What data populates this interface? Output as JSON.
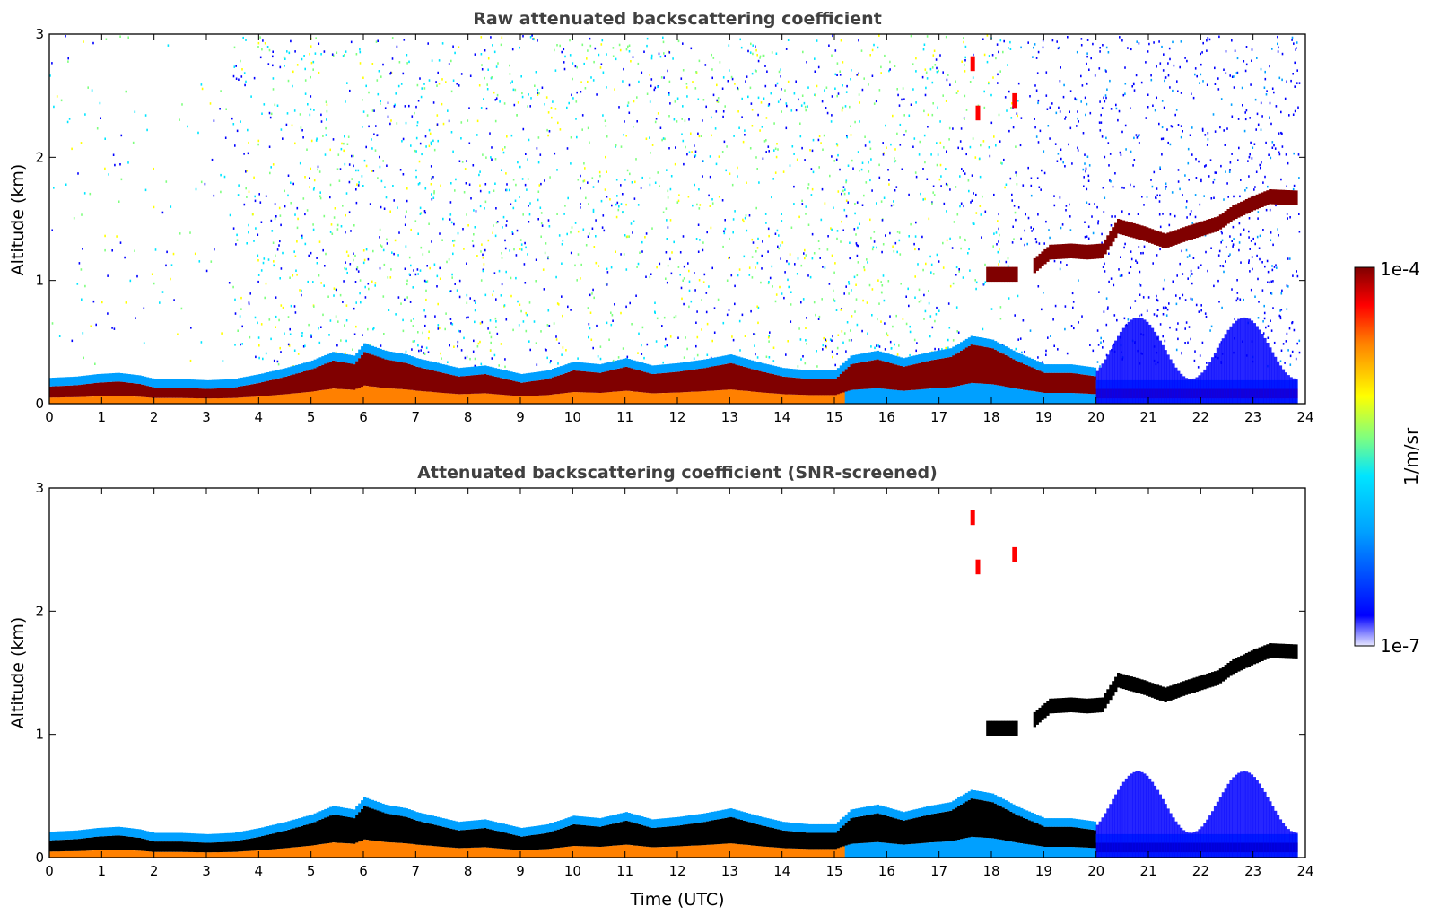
{
  "chart_data": [
    {
      "type": "heatmap",
      "title": "Raw attenuated backscattering coefficient",
      "xlabel": "",
      "ylabel": "Altitude (km)",
      "xlim": [
        0,
        24
      ],
      "ylim": [
        0,
        3
      ],
      "xticks": [
        "0",
        "1",
        "2",
        "3",
        "4",
        "5",
        "6",
        "7",
        "8",
        "9",
        "10",
        "11",
        "12",
        "13",
        "14",
        "15",
        "16",
        "17",
        "18",
        "19",
        "20",
        "21",
        "22",
        "23",
        "24"
      ],
      "yticks": [
        "0",
        "1",
        "2",
        "3"
      ],
      "layers": {
        "surface_layer_top_km": [
          [
            0,
            0.14
          ],
          [
            0.5,
            0.15
          ],
          [
            0.9,
            0.17
          ],
          [
            1.3,
            0.18
          ],
          [
            1.7,
            0.16
          ],
          [
            2,
            0.13
          ],
          [
            2.5,
            0.13
          ],
          [
            3,
            0.12
          ],
          [
            3.5,
            0.13
          ],
          [
            4,
            0.17
          ],
          [
            4.5,
            0.22
          ],
          [
            5,
            0.28
          ],
          [
            5.4,
            0.35
          ],
          [
            5.8,
            0.32
          ],
          [
            6,
            0.42
          ],
          [
            6.4,
            0.36
          ],
          [
            6.8,
            0.33
          ],
          [
            7,
            0.3
          ],
          [
            7.4,
            0.26
          ],
          [
            7.8,
            0.22
          ],
          [
            8.3,
            0.24
          ],
          [
            8.7,
            0.2
          ],
          [
            9,
            0.17
          ],
          [
            9.5,
            0.2
          ],
          [
            10,
            0.27
          ],
          [
            10.5,
            0.25
          ],
          [
            11,
            0.3
          ],
          [
            11.5,
            0.24
          ],
          [
            12,
            0.26
          ],
          [
            12.5,
            0.29
          ],
          [
            13,
            0.33
          ],
          [
            13.5,
            0.27
          ],
          [
            14,
            0.22
          ],
          [
            14.5,
            0.2
          ],
          [
            15,
            0.2
          ],
          [
            15.3,
            0.32
          ],
          [
            15.8,
            0.36
          ],
          [
            16.3,
            0.3
          ],
          [
            16.8,
            0.35
          ],
          [
            17.2,
            0.38
          ],
          [
            17.6,
            0.48
          ],
          [
            18,
            0.45
          ],
          [
            18.5,
            0.34
          ],
          [
            19,
            0.25
          ],
          [
            19.5,
            0.25
          ],
          [
            20,
            0.22
          ]
        ],
        "elevated_cloud_layer_km": [
          [
            17.9,
            1.05
          ],
          [
            18.5,
            1.05
          ],
          [
            18.8,
            1.12
          ],
          [
            19.1,
            1.23
          ],
          [
            19.5,
            1.24
          ],
          [
            19.8,
            1.23
          ],
          [
            20.1,
            1.24
          ],
          [
            20.4,
            1.44
          ],
          [
            20.9,
            1.38
          ],
          [
            21.3,
            1.32
          ],
          [
            21.7,
            1.38
          ],
          [
            22,
            1.42
          ],
          [
            22.3,
            1.46
          ],
          [
            22.6,
            1.55
          ],
          [
            23,
            1.63
          ],
          [
            23.3,
            1.68
          ],
          [
            23.8,
            1.67
          ]
        ],
        "upper_echo_km": [
          [
            17.6,
            2.7
          ],
          [
            17.7,
            2.3
          ],
          [
            18.4,
            2.4
          ]
        ]
      }
    },
    {
      "type": "heatmap",
      "title": "Attenuated backscattering coefficient (SNR-screened)",
      "xlabel": "Time (UTC)",
      "ylabel": "Altitude (km)",
      "xlim": [
        0,
        24
      ],
      "ylim": [
        0,
        3
      ],
      "xticks": [
        "0",
        "1",
        "2",
        "3",
        "4",
        "5",
        "6",
        "7",
        "8",
        "9",
        "10",
        "11",
        "12",
        "13",
        "14",
        "15",
        "16",
        "17",
        "18",
        "19",
        "20",
        "21",
        "22",
        "23",
        "24"
      ],
      "yticks": [
        "0",
        "1",
        "2",
        "3"
      ]
    }
  ],
  "colorbar": {
    "label": "1/m/sr",
    "max_label": "1e-4",
    "min_label": "1e-7",
    "colormap": "jet",
    "colors": [
      "#e8e8ff",
      "#0000ff",
      "#00a0ff",
      "#00e5ff",
      "#7fff7f",
      "#ffff00",
      "#ff8000",
      "#ff0000",
      "#800000"
    ]
  }
}
